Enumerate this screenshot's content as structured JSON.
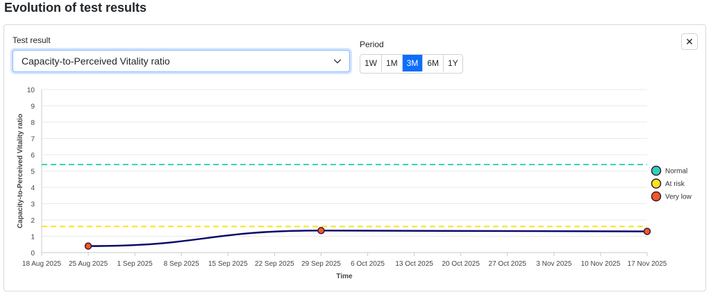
{
  "page": {
    "title": "Evolution of test results"
  },
  "controls": {
    "test_result_label": "Test result",
    "selected_test": "Capacity-to-Perceived Vitality ratio",
    "period_label": "Period",
    "periods": [
      "1W",
      "1M",
      "3M",
      "6M",
      "1Y"
    ],
    "active_period": "3M",
    "close_symbol": "✕"
  },
  "colors": {
    "primary": "#0d6efd",
    "series_line": "#0a0a6b",
    "normal": "#2ed3b7",
    "at_risk": "#f5e51b",
    "very_low": "#f05a24"
  },
  "chart_data": {
    "type": "line",
    "xlabel": "Time",
    "ylabel": "Capacity-to-Perceived Vitality ratio",
    "ylim": [
      0,
      10
    ],
    "yticks": [
      "0",
      "1",
      "2",
      "3",
      "4",
      "5",
      "6",
      "7",
      "8",
      "9",
      "10"
    ],
    "xticks": [
      "18 Aug 2025",
      "25 Aug 2025",
      "1 Sep 2025",
      "8 Sep 2025",
      "15 Sep 2025",
      "22 Sep 2025",
      "29 Sep 2025",
      "6 Oct 2025",
      "13 Oct 2025",
      "20 Oct 2025",
      "27 Oct 2025",
      "3 Nov 2025",
      "10 Nov 2025",
      "17 Nov 2025"
    ],
    "xlim": [
      "2025-08-18",
      "2025-11-17"
    ],
    "grid": true,
    "series": [
      {
        "points": [
          {
            "x": "2025-08-25",
            "y": 0.4,
            "status": "very_low"
          },
          {
            "x": "2025-09-29",
            "y": 1.35,
            "status": "very_low"
          },
          {
            "x": "2025-11-17",
            "y": 1.3,
            "status": "very_low"
          }
        ]
      }
    ],
    "thresholds": [
      {
        "name": "Normal",
        "y": 5.4,
        "status": "normal"
      },
      {
        "name": "At risk",
        "y": 1.6,
        "status": "at_risk"
      }
    ],
    "legend": [
      {
        "label": "Normal",
        "status": "normal"
      },
      {
        "label": "At risk",
        "status": "at_risk"
      },
      {
        "label": "Very low",
        "status": "very_low"
      }
    ],
    "legend_position": "right"
  }
}
